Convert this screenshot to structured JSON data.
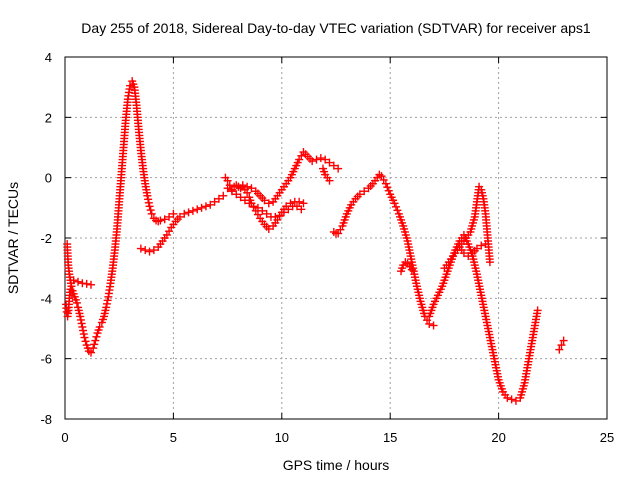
{
  "chart_data": {
    "type": "scatter",
    "title": "Day 255 of 2018, Sidereal Day-to-day VTEC variation (SDTVAR) for receiver aps1",
    "xlabel": "GPS time / hours",
    "ylabel": "SDTVAR / TECUs",
    "xlim": [
      0,
      25
    ],
    "ylim": [
      -8,
      4
    ],
    "xticks": [
      0,
      5,
      10,
      15,
      20,
      25
    ],
    "yticks": [
      -8,
      -6,
      -4,
      -2,
      0,
      2,
      4
    ],
    "grid": true,
    "marker": "+",
    "color": "#ff0000",
    "series_segments": [
      {
        "x": [
          0.1,
          0.12,
          0.15,
          0.2,
          0.25,
          0.3,
          0.35,
          0.4,
          0.45,
          0.5,
          0.55,
          0.6,
          0.7,
          0.8,
          0.9,
          1.0,
          1.1,
          1.2,
          1.3,
          1.4,
          1.5,
          1.6,
          1.7,
          1.8,
          1.9,
          2.0,
          2.1,
          2.2,
          2.3,
          2.4,
          2.5,
          2.6,
          2.7,
          2.8,
          2.9,
          3.0,
          3.1,
          3.2,
          3.3,
          3.4,
          3.5,
          3.6,
          3.7,
          3.8,
          3.9,
          4.0,
          4.1,
          4.2,
          4.3,
          4.4,
          4.6,
          4.8,
          5.0
        ],
        "y": [
          -2.2,
          -2.5,
          -2.9,
          -3.2,
          -3.4,
          -3.6,
          -3.75,
          -3.85,
          -3.95,
          -4.05,
          -4.15,
          -4.3,
          -4.6,
          -4.95,
          -5.3,
          -5.55,
          -5.75,
          -5.8,
          -5.65,
          -5.4,
          -5.15,
          -4.95,
          -4.8,
          -4.6,
          -4.3,
          -3.95,
          -3.5,
          -3.0,
          -2.4,
          -1.7,
          -0.8,
          0.1,
          1.0,
          1.9,
          2.6,
          3.05,
          3.2,
          3.0,
          2.4,
          1.6,
          0.9,
          0.3,
          -0.2,
          -0.6,
          -0.95,
          -1.2,
          -1.35,
          -1.42,
          -1.45,
          -1.42,
          -1.38,
          -1.3,
          -1.2
        ]
      },
      {
        "x": [
          0.05,
          0.08,
          0.12,
          0.16,
          0.2,
          0.25
        ],
        "y": [
          -4.2,
          -4.45,
          -4.6,
          -4.4,
          -4.0,
          -3.7
        ]
      },
      {
        "x": [
          0.4,
          0.6,
          0.8,
          1.0,
          1.2
        ],
        "y": [
          -3.4,
          -3.45,
          -3.5,
          -3.52,
          -3.55
        ]
      },
      {
        "x": [
          3.5,
          3.7,
          3.9,
          4.1,
          4.3,
          4.5,
          4.7,
          4.9,
          5.1,
          5.3,
          5.5,
          5.7,
          5.9,
          6.1,
          6.3,
          6.5,
          6.7,
          6.9,
          7.1,
          7.3
        ],
        "y": [
          -2.35,
          -2.4,
          -2.45,
          -2.4,
          -2.3,
          -2.1,
          -1.9,
          -1.65,
          -1.45,
          -1.3,
          -1.2,
          -1.15,
          -1.1,
          -1.05,
          -1.0,
          -0.95,
          -0.9,
          -0.8,
          -0.7,
          -0.6
        ]
      },
      {
        "x": [
          7.4,
          7.5,
          7.6,
          7.7,
          7.8,
          7.9,
          8.0,
          8.1,
          8.2,
          8.3,
          8.4,
          8.5,
          8.6,
          8.8,
          9.0,
          9.2,
          9.4,
          9.6,
          9.8,
          10.0,
          10.2,
          10.4,
          10.6,
          10.8,
          11.0
        ],
        "y": [
          0.0,
          -0.1,
          -0.25,
          -0.4,
          -0.3,
          -0.25,
          -0.3,
          -0.35,
          -0.3,
          -0.4,
          -0.5,
          -0.65,
          -0.85,
          -1.1,
          -1.35,
          -1.55,
          -1.7,
          -1.6,
          -1.4,
          -1.15,
          -0.95,
          -0.85,
          -0.8,
          -0.8,
          -0.85
        ]
      },
      {
        "x": [
          7.5,
          7.7,
          7.9,
          8.1,
          8.3,
          8.5,
          8.7,
          8.9,
          9.1,
          9.3,
          9.5,
          9.7,
          9.9,
          10.1,
          10.3,
          10.5,
          10.7,
          10.9
        ],
        "y": [
          -0.35,
          -0.45,
          -0.55,
          -0.65,
          -0.75,
          -0.85,
          -0.95,
          -1.0,
          -1.1,
          -1.2,
          -1.3,
          -1.3,
          -1.25,
          -1.15,
          -1.05,
          -0.95,
          -0.95,
          -1.05
        ]
      },
      {
        "x": [
          8.0,
          8.2,
          8.4,
          8.6,
          8.8,
          9.0,
          9.2,
          9.4,
          9.6,
          9.8,
          10.0,
          10.2,
          10.4,
          10.6,
          10.8,
          11.0,
          11.2,
          11.4,
          11.6,
          11.8,
          12.0,
          12.2,
          12.4,
          12.6
        ],
        "y": [
          -0.3,
          -0.25,
          -0.3,
          -0.35,
          -0.45,
          -0.6,
          -0.75,
          -0.85,
          -0.8,
          -0.6,
          -0.4,
          -0.2,
          0.0,
          0.3,
          0.6,
          0.85,
          0.7,
          0.55,
          0.6,
          0.65,
          0.6,
          0.5,
          0.4,
          0.3
        ]
      },
      {
        "x": [
          11.9,
          12.0,
          12.1,
          12.2
        ],
        "y": [
          0.3,
          0.1,
          0.0,
          -0.1
        ]
      },
      {
        "x": [
          12.4,
          12.5,
          12.6,
          12.8,
          13.0,
          13.2,
          13.4,
          13.6,
          13.8,
          14.0,
          14.2,
          14.4,
          14.5,
          14.6,
          14.8,
          15.0,
          15.2,
          15.4,
          15.6,
          15.8,
          16.0,
          16.2,
          16.4,
          16.6,
          16.8,
          17.0
        ],
        "y": [
          -1.8,
          -1.85,
          -1.85,
          -1.6,
          -1.2,
          -0.9,
          -0.7,
          -0.55,
          -0.45,
          -0.35,
          -0.2,
          0.0,
          0.1,
          0.05,
          -0.2,
          -0.55,
          -0.85,
          -1.2,
          -1.6,
          -2.1,
          -2.8,
          -3.5,
          -4.1,
          -4.6,
          -4.85,
          -4.9
        ]
      },
      {
        "x": [
          15.5,
          15.6,
          15.7,
          15.8,
          15.9,
          16.0
        ],
        "y": [
          -3.1,
          -2.9,
          -2.8,
          -2.85,
          -2.95,
          -3.05
        ]
      },
      {
        "x": [
          16.8,
          17.0,
          17.2,
          17.4,
          17.6,
          17.8,
          18.0,
          18.2,
          18.4,
          18.6,
          18.8,
          19.0,
          19.2,
          19.4,
          19.6,
          19.8,
          20.0,
          20.2,
          20.4,
          20.6,
          20.8,
          21.0,
          21.2,
          21.4,
          21.6,
          21.8
        ],
        "y": [
          -4.6,
          -4.2,
          -3.9,
          -3.6,
          -3.2,
          -2.8,
          -2.4,
          -2.1,
          -1.9,
          -2.2,
          -2.6,
          -3.2,
          -3.9,
          -4.6,
          -5.3,
          -6.0,
          -6.7,
          -7.1,
          -7.3,
          -7.35,
          -7.4,
          -7.3,
          -6.8,
          -6.0,
          -5.2,
          -4.4
        ]
      },
      {
        "x": [
          17.5,
          17.7,
          17.9,
          18.1,
          18.3,
          18.5,
          18.7,
          18.9,
          19.0,
          19.1,
          19.2,
          19.3,
          19.4,
          19.5,
          19.6
        ],
        "y": [
          -3.0,
          -2.8,
          -2.6,
          -2.4,
          -2.2,
          -2.0,
          -1.8,
          -1.3,
          -0.8,
          -0.3,
          -0.4,
          -0.7,
          -1.2,
          -2.0,
          -2.8
        ]
      },
      {
        "x": [
          18.2,
          18.4,
          18.6,
          18.8,
          19.0,
          19.2,
          19.4
        ],
        "y": [
          -2.3,
          -2.5,
          -2.6,
          -2.5,
          -2.35,
          -2.25,
          -2.2
        ]
      },
      {
        "x": [
          22.8,
          22.9,
          23.0
        ],
        "y": [
          -5.7,
          -5.55,
          -5.4
        ]
      }
    ]
  }
}
